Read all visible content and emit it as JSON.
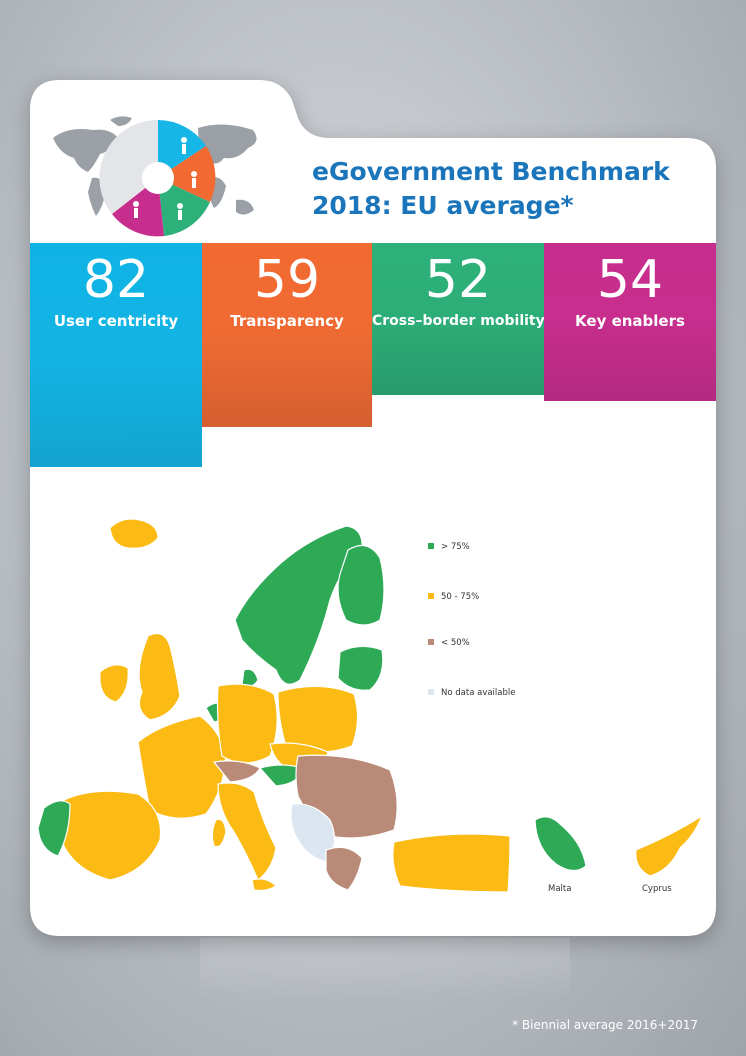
{
  "header": {
    "title_line1": "eGovernment Benchmark",
    "title_line2": "2018: EU average*"
  },
  "indicators": [
    {
      "value": "82",
      "label": "User centricity",
      "color": "#0fb3e3"
    },
    {
      "value": "59",
      "label": "Transparency",
      "color": "#f26a31"
    },
    {
      "value": "52",
      "label": "Cross–border mobility",
      "color": "#2eb07a"
    },
    {
      "value": "54",
      "label": "Key enablers",
      "color": "#c72d8c"
    }
  ],
  "legend": [
    {
      "label": "> 75%",
      "color": "#2eaa57"
    },
    {
      "label": "50 - 75%",
      "color": "#fbbb14"
    },
    {
      "label": "< 50%",
      "color": "#b98a78"
    },
    {
      "label": "No data available",
      "color": "#dce6f0"
    }
  ],
  "insets": {
    "malta": "Malta",
    "cyprus": "Cyprus"
  },
  "footnote": "* Biennial average 2016+2017",
  "icons": [
    "world-map-icon",
    "pie-chart-icon",
    "person-icon"
  ]
}
